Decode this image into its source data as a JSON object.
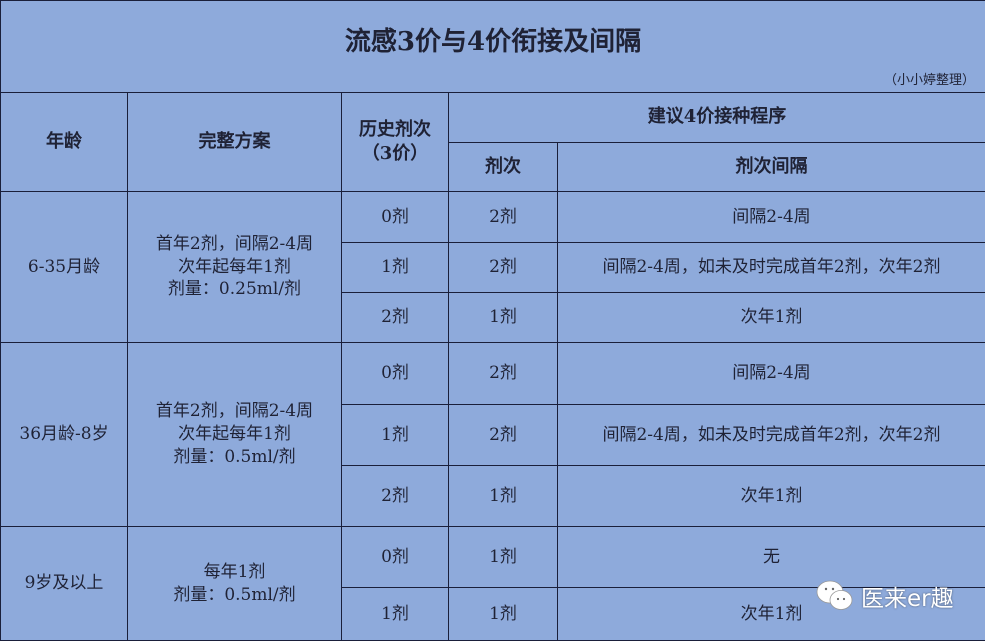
{
  "title": "流感3价与4价衔接及间隔",
  "credit": "（小小婷整理）",
  "headers": {
    "age": "年龄",
    "plan": "完整方案",
    "history": "历史剂次",
    "history_sub": "（3价）",
    "recommend": "建议4价接种程序",
    "doses": "剂次",
    "interval": "剂次间隔"
  },
  "groups": [
    {
      "age": "6-35月龄",
      "plan": [
        "首年2剂，间隔2-4周",
        "次年起每年1剂",
        "剂量：0.25ml/剂"
      ],
      "rows": [
        {
          "history": "0剂",
          "doses": "2剂",
          "interval": "间隔2-4周"
        },
        {
          "history": "1剂",
          "doses": "2剂",
          "interval": "间隔2-4周，如未及时完成首年2剂，次年2剂"
        },
        {
          "history": "2剂",
          "doses": "1剂",
          "interval": "次年1剂"
        }
      ]
    },
    {
      "age": "36月龄-8岁",
      "plan": [
        "首年2剂，间隔2-4周",
        "次年起每年1剂",
        "剂量：0.5ml/剂"
      ],
      "rows": [
        {
          "history": "0剂",
          "doses": "2剂",
          "interval": "间隔2-4周"
        },
        {
          "history": "1剂",
          "doses": "2剂",
          "interval": "间隔2-4周，如未及时完成首年2剂，次年2剂"
        },
        {
          "history": "2剂",
          "doses": "1剂",
          "interval": "次年1剂"
        }
      ]
    },
    {
      "age": "9岁及以上",
      "plan": [
        "每年1剂",
        "剂量：0.5ml/剂"
      ],
      "rows": [
        {
          "history": "0剂",
          "doses": "1剂",
          "interval": "无"
        },
        {
          "history": "1剂",
          "doses": "1剂",
          "interval": "次年1剂"
        }
      ]
    }
  ],
  "watermark": "医来er趣",
  "colors": {
    "background": "#8eaadb",
    "border": "#1a1f3a"
  }
}
